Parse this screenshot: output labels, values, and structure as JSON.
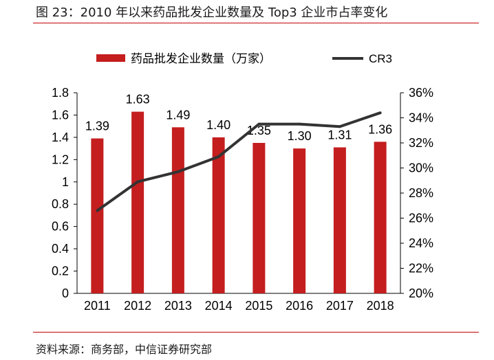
{
  "header": {
    "title": "图 23：2010 年以来药品批发企业数量及 Top3 企业市占率变化"
  },
  "footer": {
    "source": "资料来源：商务部，中信证券研究部"
  },
  "colors": {
    "accent_rule": "#c00000",
    "bar": "#c41e1e",
    "line": "#333333"
  },
  "chart_data": {
    "type": "bar",
    "categories": [
      "2011",
      "2012",
      "2013",
      "2014",
      "2015",
      "2016",
      "2017",
      "2018"
    ],
    "series": [
      {
        "name": "药品批发企业数量（万家）",
        "type": "bar",
        "axis": "left",
        "values": [
          1.39,
          1.63,
          1.49,
          1.4,
          1.35,
          1.3,
          1.31,
          1.36
        ],
        "labels": [
          "1.39",
          "1.63",
          "1.49",
          "1.40",
          "1.35",
          "1.30",
          "1.31",
          "1.36"
        ]
      },
      {
        "name": "CR3",
        "type": "line",
        "axis": "right",
        "values": [
          26.6,
          28.9,
          29.7,
          30.9,
          33.5,
          33.5,
          33.3,
          34.4
        ]
      }
    ],
    "y_left": {
      "min": 0,
      "max": 1.8,
      "ticks": [
        "0",
        "0.2",
        "0.4",
        "0.6",
        "0.8",
        "1",
        "1.2",
        "1.4",
        "1.6",
        "1.8"
      ]
    },
    "y_right": {
      "min": 20,
      "max": 36,
      "ticks": [
        "20%",
        "22%",
        "24%",
        "26%",
        "28%",
        "30%",
        "32%",
        "34%",
        "36%"
      ]
    },
    "legend_position": "top",
    "grid": false
  }
}
